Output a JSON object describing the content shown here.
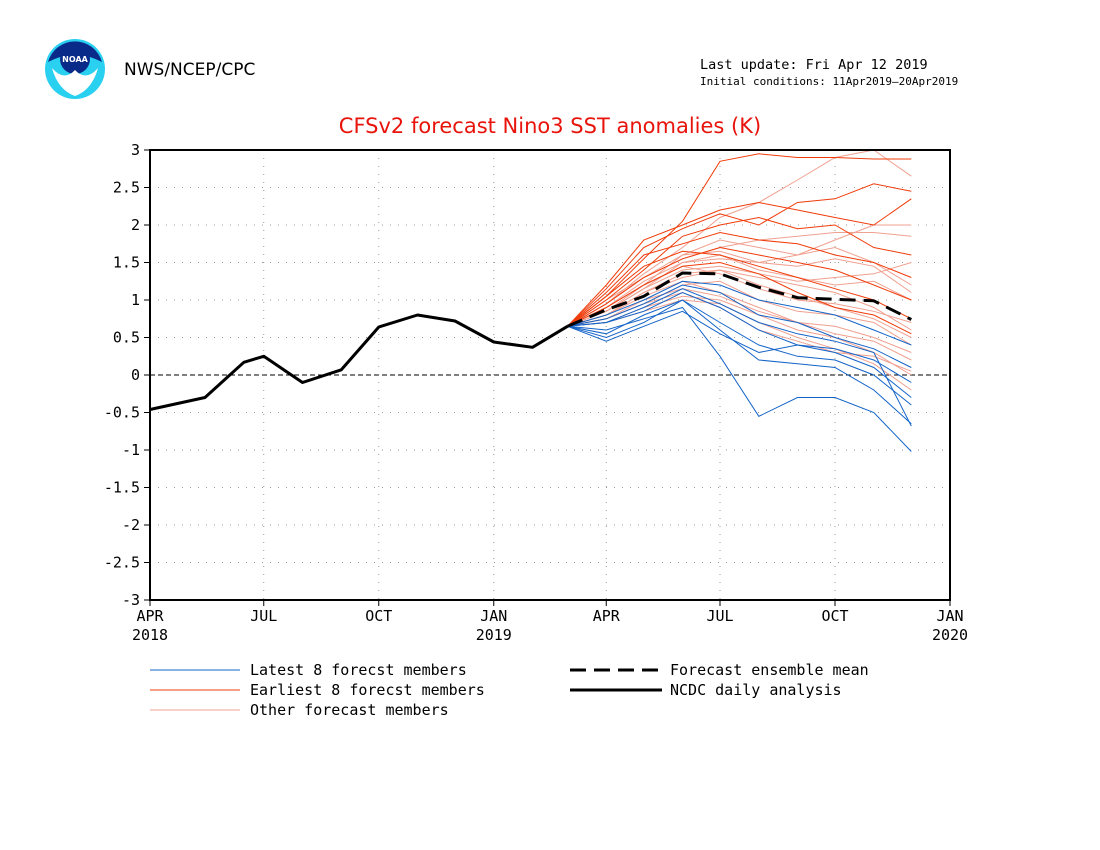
{
  "header": {
    "org": "NWS/NCEP/CPC",
    "last_update": "Last update: Fri Apr 12 2019",
    "initial_conditions": "Initial conditions: 11Apr2019—20Apr2019",
    "logo_text": "NOAA"
  },
  "legend": {
    "latest": "Latest 8 forecst members",
    "earliest": "Earliest 8 forecst members",
    "other": "Other forecast members",
    "mean": "Forecast ensemble mean",
    "ncdc": "NCDC daily analysis"
  },
  "colors": {
    "title": "#e8140c",
    "latest": "#1464c8",
    "earliest": "#f03c0a",
    "other": "#f0a090",
    "analysis": "#000000"
  },
  "chart_data": {
    "type": "line",
    "title": "CFSv2 forecast Nino3 SST anomalies (K)",
    "xlabel": "",
    "ylabel": "",
    "ylim": [
      -3,
      3
    ],
    "xlim": [
      "2018-04-01",
      "2020-01-01"
    ],
    "yticks": [
      "3",
      "2.5",
      "2",
      "1.5",
      "1",
      "0.5",
      "0",
      "-0.5",
      "-1",
      "-1.5",
      "-2",
      "-2.5",
      "-3"
    ],
    "ytick_values": [
      3,
      2.5,
      2,
      1.5,
      1,
      0.5,
      0,
      -0.5,
      -1,
      -1.5,
      -2,
      -2.5,
      -3
    ],
    "xticks": [
      {
        "date": "2018-04-01",
        "label": "APR",
        "year": "2018"
      },
      {
        "date": "2018-07-01",
        "label": "JUL",
        "year": ""
      },
      {
        "date": "2018-10-01",
        "label": "OCT",
        "year": ""
      },
      {
        "date": "2019-01-01",
        "label": "JAN",
        "year": "2019"
      },
      {
        "date": "2019-04-01",
        "label": "APR",
        "year": ""
      },
      {
        "date": "2019-07-01",
        "label": "JUL",
        "year": ""
      },
      {
        "date": "2019-10-01",
        "label": "OCT",
        "year": ""
      },
      {
        "date": "2020-01-01",
        "label": "JAN",
        "year": "2020"
      }
    ],
    "grid": true,
    "analysis": {
      "x": [
        "2018-04-01",
        "2018-05-15",
        "2018-06-15",
        "2018-07-01",
        "2018-08-01",
        "2018-09-01",
        "2018-10-01",
        "2018-11-01",
        "2018-12-01",
        "2019-01-01",
        "2019-02-01",
        "2019-03-01"
      ],
      "y": [
        -0.46,
        -0.3,
        0.17,
        0.25,
        -0.1,
        0.07,
        0.64,
        0.8,
        0.72,
        0.44,
        0.37,
        0.65
      ]
    },
    "ensemble_mean": {
      "x": [
        "2019-03-01",
        "2019-04-01",
        "2019-05-01",
        "2019-06-01",
        "2019-07-01",
        "2019-08-01",
        "2019-09-01",
        "2019-10-01",
        "2019-11-01",
        "2019-12-01"
      ],
      "y": [
        0.65,
        0.87,
        1.05,
        1.36,
        1.35,
        1.17,
        1.03,
        1.01,
        0.99,
        0.74
      ]
    },
    "forecast_months": [
      "2019-03-01",
      "2019-04-01",
      "2019-05-01",
      "2019-06-01",
      "2019-07-01",
      "2019-08-01",
      "2019-09-01",
      "2019-10-01",
      "2019-11-01",
      "2019-12-01"
    ],
    "earliest_members": [
      [
        0.65,
        1.05,
        1.55,
        2.05,
        2.85,
        2.95,
        2.9,
        2.9,
        2.88,
        2.88
      ],
      [
        0.65,
        1.15,
        1.7,
        1.95,
        2.15,
        2.0,
        2.3,
        2.35,
        2.55,
        2.45
      ],
      [
        0.65,
        1.0,
        1.4,
        1.85,
        2.0,
        2.1,
        1.95,
        2.0,
        1.7,
        1.6
      ],
      [
        0.65,
        1.1,
        1.6,
        1.75,
        1.9,
        1.8,
        1.75,
        1.6,
        1.5,
        1.3
      ],
      [
        0.65,
        0.95,
        1.3,
        1.55,
        1.7,
        1.6,
        1.5,
        1.4,
        1.2,
        1.0
      ],
      [
        0.65,
        1.05,
        1.45,
        1.65,
        1.6,
        1.45,
        1.3,
        1.15,
        1.0,
        0.75
      ],
      [
        0.65,
        0.9,
        1.2,
        1.45,
        1.5,
        1.35,
        1.1,
        0.9,
        0.8,
        0.55
      ],
      [
        0.65,
        1.2,
        1.8,
        2.0,
        2.2,
        2.3,
        2.2,
        2.1,
        2.0,
        2.35
      ]
    ],
    "latest_members": [
      [
        0.65,
        0.5,
        0.7,
        1.0,
        0.6,
        0.2,
        0.15,
        0.1,
        -0.2,
        -0.65
      ],
      [
        0.65,
        0.6,
        0.75,
        0.9,
        0.25,
        -0.55,
        -0.3,
        -0.3,
        -0.5,
        -1.02
      ],
      [
        0.65,
        0.7,
        0.85,
        1.1,
        0.9,
        0.6,
        0.4,
        0.3,
        0.1,
        -0.3
      ],
      [
        0.65,
        0.75,
        0.95,
        1.2,
        1.1,
        0.8,
        0.7,
        0.5,
        0.35,
        0.1
      ],
      [
        0.65,
        0.55,
        0.8,
        1.0,
        0.7,
        0.4,
        0.25,
        0.2,
        0.0,
        -0.4
      ],
      [
        0.65,
        0.8,
        1.0,
        1.25,
        1.2,
        1.0,
        0.9,
        0.8,
        0.6,
        0.4
      ],
      [
        0.65,
        0.45,
        0.65,
        0.85,
        0.55,
        0.3,
        0.4,
        0.35,
        0.2,
        -0.1
      ],
      [
        0.65,
        0.7,
        0.9,
        1.15,
        0.95,
        0.7,
        0.55,
        0.45,
        0.3,
        -0.68
      ]
    ],
    "other_members": [
      [
        0.65,
        0.85,
        1.2,
        1.6,
        1.8,
        1.7,
        1.6,
        1.7,
        1.5,
        1.2
      ],
      [
        0.65,
        0.8,
        1.1,
        1.3,
        1.4,
        1.3,
        1.2,
        1.1,
        0.9,
        0.6
      ],
      [
        0.65,
        0.9,
        1.25,
        1.5,
        1.55,
        1.5,
        1.6,
        1.8,
        2.0,
        2.0
      ],
      [
        0.65,
        0.75,
        0.95,
        1.2,
        1.25,
        1.0,
        0.85,
        0.8,
        0.7,
        0.4
      ],
      [
        0.65,
        0.95,
        1.35,
        1.7,
        2.1,
        2.3,
        2.6,
        2.9,
        3.0,
        2.65
      ],
      [
        0.65,
        0.7,
        0.9,
        1.05,
        1.0,
        0.8,
        0.6,
        0.5,
        0.3,
        0.0
      ],
      [
        0.65,
        0.85,
        1.15,
        1.4,
        1.45,
        1.35,
        1.25,
        1.3,
        1.35,
        1.5
      ],
      [
        0.65,
        0.8,
        1.05,
        1.25,
        1.1,
        0.9,
        0.7,
        0.55,
        0.45,
        0.2
      ],
      [
        0.65,
        1.0,
        1.3,
        1.55,
        1.7,
        1.8,
        1.85,
        1.9,
        1.9,
        1.85
      ],
      [
        0.65,
        0.75,
        1.0,
        1.15,
        1.05,
        0.85,
        0.7,
        0.65,
        0.5,
        0.3
      ],
      [
        0.65,
        0.9,
        1.2,
        1.45,
        1.35,
        1.15,
        1.0,
        0.95,
        0.85,
        0.7
      ],
      [
        0.65,
        0.7,
        0.85,
        1.0,
        0.95,
        0.7,
        0.5,
        0.35,
        0.15,
        -0.2
      ],
      [
        0.65,
        0.95,
        1.3,
        1.6,
        1.65,
        1.5,
        1.45,
        1.55,
        1.45,
        1.1
      ],
      [
        0.65,
        0.8,
        1.1,
        1.35,
        1.4,
        1.2,
        1.05,
        0.9,
        0.75,
        0.5
      ],
      [
        0.65,
        0.85,
        1.15,
        1.5,
        1.6,
        1.4,
        1.3,
        1.2,
        1.25,
        1.0
      ],
      [
        0.65,
        0.75,
        0.95,
        1.1,
        0.9,
        0.6,
        0.45,
        0.3,
        0.25,
        0.05
      ]
    ]
  }
}
